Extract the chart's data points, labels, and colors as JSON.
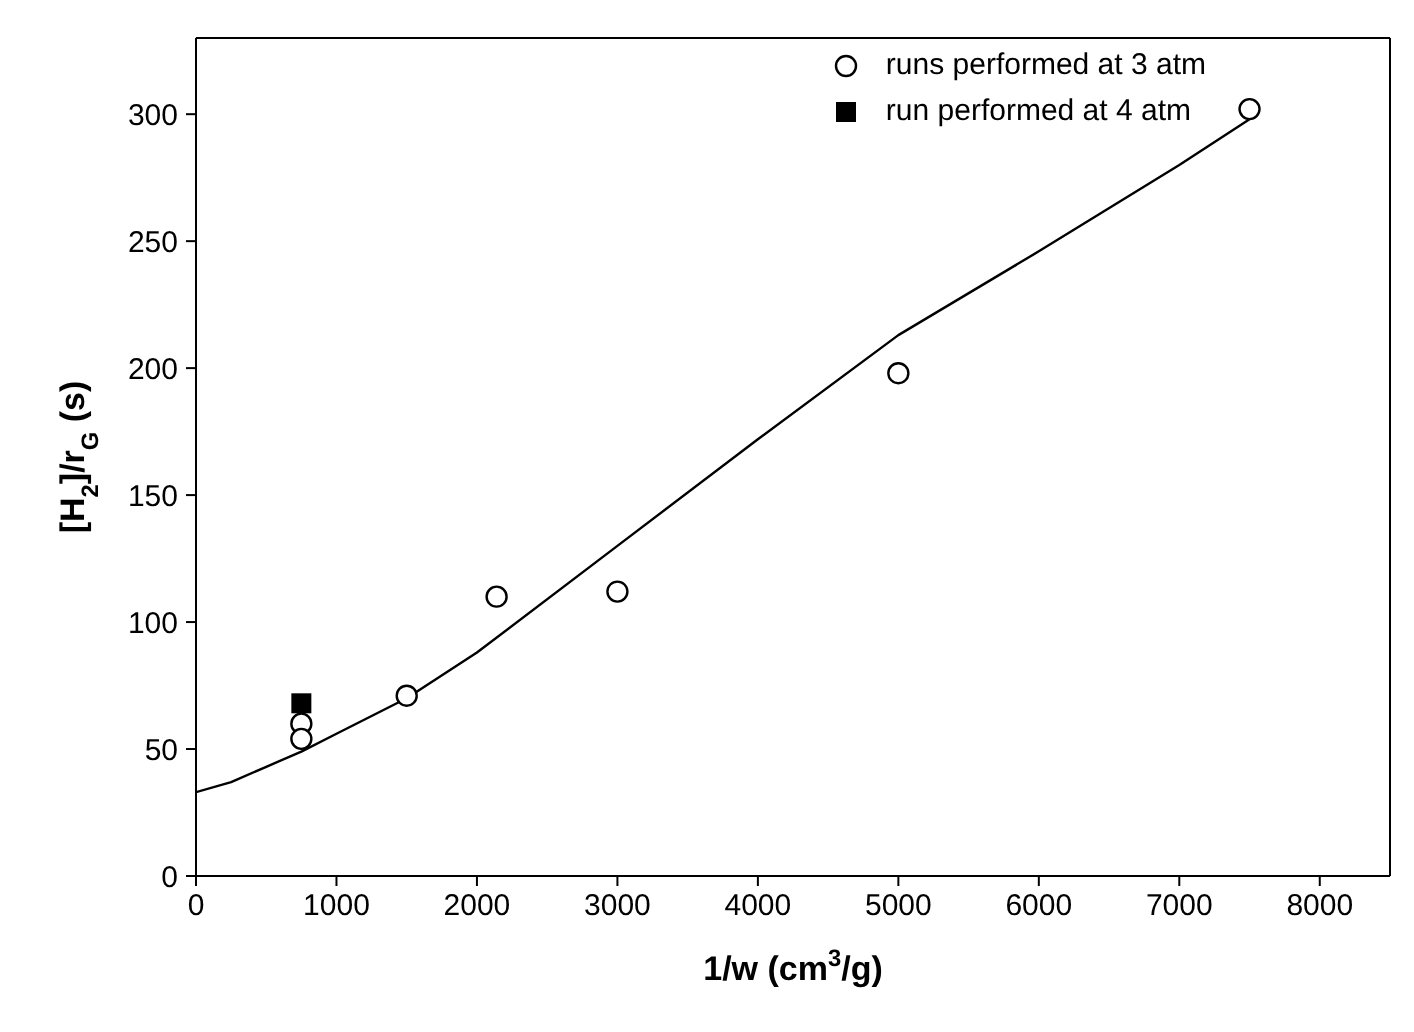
{
  "chart_data": {
    "type": "scatter",
    "xlabel": "1/w (cm$^{3}$/g)",
    "ylabel": "[H$_{2}$]/r$_{G}$ (s)",
    "xlim": [
      0,
      8500
    ],
    "xticks": [
      0,
      1000,
      2000,
      3000,
      4000,
      5000,
      6000,
      7000,
      8000
    ],
    "ylim": [
      0,
      330
    ],
    "yticks": [
      0,
      50,
      100,
      150,
      200,
      250,
      300
    ],
    "legend": "top right",
    "series": [
      {
        "name": "runs performed at 3 atm",
        "marker": "circle",
        "color": "#000000",
        "x": [
          750,
          750,
          1500,
          2140,
          3000,
          5000,
          7500
        ],
        "values": [
          60,
          54,
          71,
          110,
          112,
          198,
          302
        ]
      },
      {
        "name": "run performed at 4 atm",
        "marker": "square",
        "color": "#000000",
        "x": [
          750
        ],
        "values": [
          68
        ]
      },
      {
        "type": "line",
        "color": "#000000",
        "line_style": "solid",
        "x": [
          0,
          250,
          500,
          750,
          1000,
          1500,
          2000,
          3000,
          4000,
          5000,
          6000,
          7000,
          7500
        ],
        "values": [
          33,
          37,
          43,
          49,
          56,
          70,
          88,
          130,
          172,
          213,
          246,
          280,
          298
        ]
      }
    ]
  }
}
